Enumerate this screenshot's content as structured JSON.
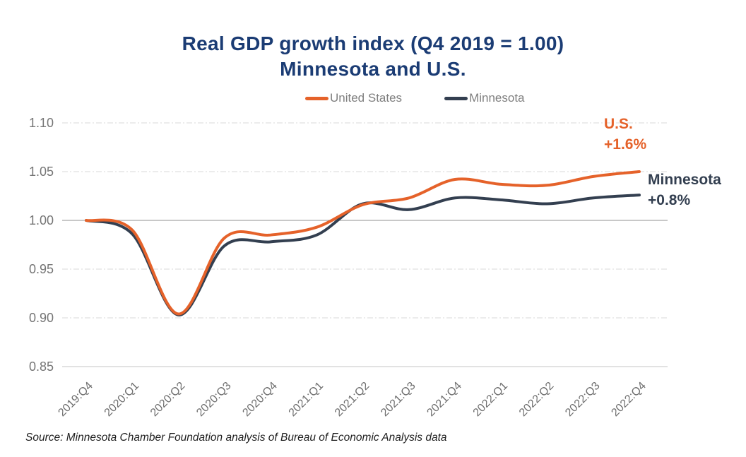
{
  "title": {
    "line1": "Real GDP growth index (Q4 2019 = 1.00)",
    "line2": "Minnesota and U.S."
  },
  "annotations": {
    "us": {
      "name": "U.S.",
      "value": "+1.6%"
    },
    "mn": {
      "name": "Minnesota",
      "value": "+0.8%"
    }
  },
  "source": "Source: Minnesota Chamber Foundation analysis of Bureau of Economic Analysis data",
  "colors": {
    "title": "#1B3C74",
    "us_series": "#E5622A",
    "mn_series": "#333F50",
    "grid": "#D9D9D9",
    "baseline_line": "#A6A6A6",
    "bottom_axis": "#C6C6C6",
    "y_tick_text": "#757575",
    "x_tick_text": "#6E6E6E",
    "legend_text": "#7F7F7F"
  },
  "chart_data": {
    "type": "line",
    "title": "Real GDP growth index (Q4 2019 = 1.00) Minnesota and U.S.",
    "categories": [
      "2019:Q4",
      "2020:Q1",
      "2020:Q2",
      "2020:Q3",
      "2020:Q4",
      "2021:Q1",
      "2021:Q2",
      "2021:Q3",
      "2021:Q4",
      "2022:Q1",
      "2022:Q2",
      "2022:Q3",
      "2022:Q4"
    ],
    "series": [
      {
        "name": "United States",
        "color": "#E5622A",
        "values": [
          1.0,
          0.99,
          0.904,
          0.982,
          0.985,
          0.993,
          1.016,
          1.023,
          1.042,
          1.037,
          1.036,
          1.045,
          1.05
        ]
      },
      {
        "name": "Minnesota",
        "color": "#333F50",
        "values": [
          1.0,
          0.986,
          0.903,
          0.974,
          0.978,
          0.985,
          1.017,
          1.011,
          1.023,
          1.021,
          1.017,
          1.023,
          1.026
        ]
      }
    ],
    "y_ticks": [
      "1.10",
      "1.05",
      "1.00",
      "0.95",
      "0.90",
      "0.85"
    ],
    "ylim": [
      0.85,
      1.1
    ],
    "baseline": 1.0,
    "grid": "horizontal-dashed",
    "legend_position": "top",
    "x_tick_label_rotation": 45
  }
}
